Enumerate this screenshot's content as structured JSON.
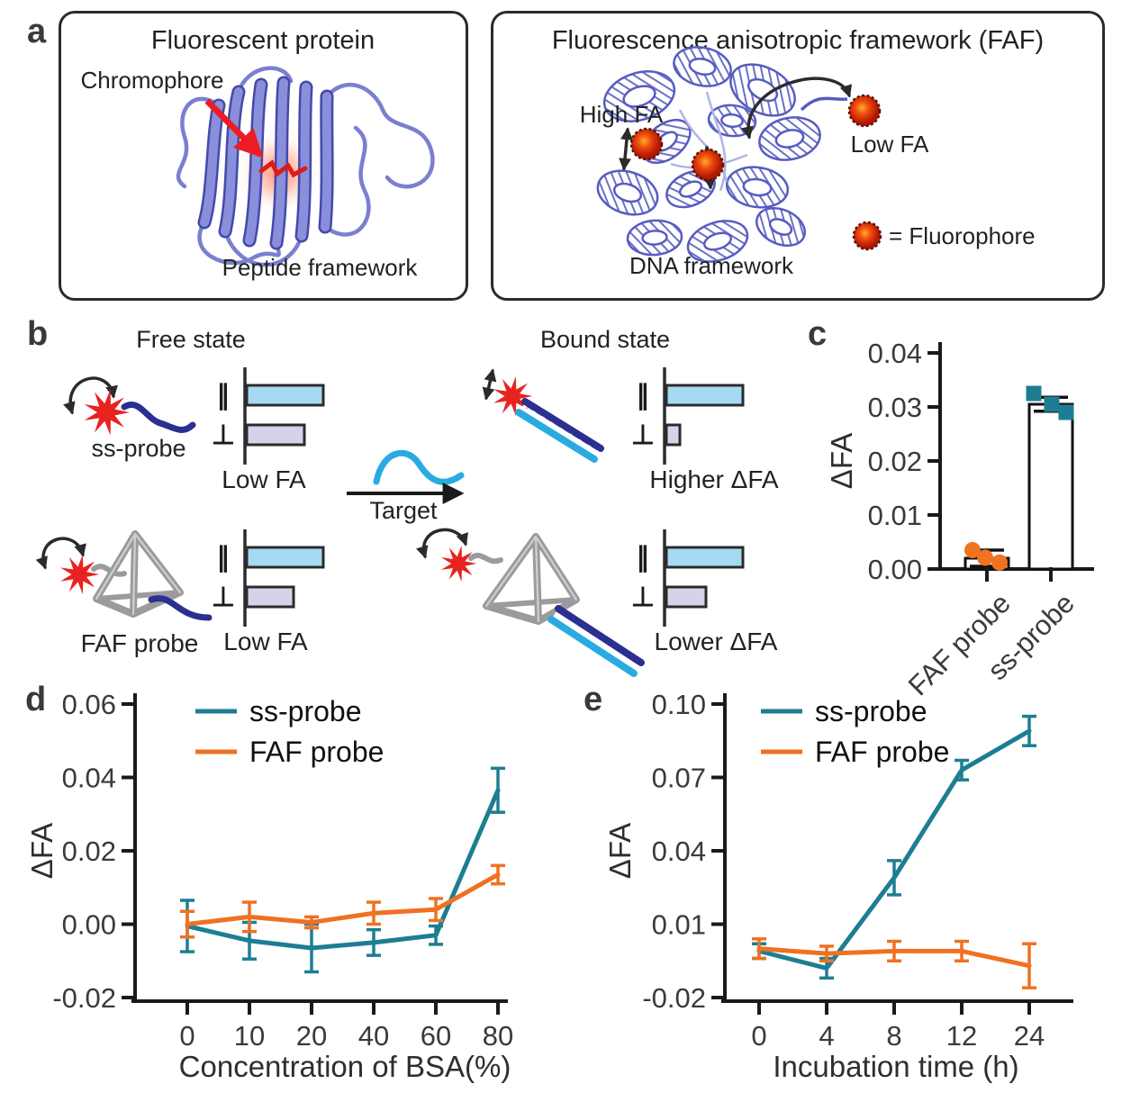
{
  "panel_labels": {
    "a": "a",
    "b": "b",
    "c": "c",
    "d": "d",
    "e": "e"
  },
  "panel_a": {
    "left": {
      "title": "Fluorescent protein",
      "chromophore_label": "Chromophore",
      "caption": "Peptide framework"
    },
    "right": {
      "title": "Fluorescence anisotropic framework (FAF)",
      "high_fa": "High FA",
      "low_fa": "Low FA",
      "fluorophore_legend": "= Fluorophore",
      "caption": "DNA framework"
    }
  },
  "panel_b": {
    "free_state_title": "Free state",
    "bound_state_title": "Bound state",
    "ss_probe_label": "ss-probe",
    "faf_probe_label": "FAF probe",
    "target_label": "Target",
    "parallel_symbol": "∥",
    "perpendicular_symbol": "⊥",
    "free_ss_caption": "Low FA",
    "free_faf_caption": "Low FA",
    "bound_ss_caption": "Higher ΔFA",
    "bound_faf_caption": "Lower ΔFA"
  },
  "chart_data": [
    {
      "id": "c",
      "type": "bar",
      "categories": [
        "FAF probe",
        "ss-probe"
      ],
      "values": [
        0.002,
        0.0305
      ],
      "errors": [
        0.0015,
        0.0013
      ],
      "points": [
        [
          0.0035,
          0.0021,
          0.0012
        ],
        [
          0.0325,
          0.0305,
          0.029
        ]
      ],
      "point_shapes": [
        "circle",
        "square"
      ],
      "point_colors": [
        "#f0741f",
        "#1d7e93"
      ],
      "ylabel": "ΔFA",
      "ylim": [
        0,
        0.04
      ],
      "yticks": [
        0,
        0.01,
        0.02,
        0.03,
        0.04
      ],
      "ytick_labels": [
        "0.00",
        "0.01",
        "0.02",
        "0.03",
        "0.04"
      ],
      "bar_fill": "#ffffff",
      "grid": false
    },
    {
      "id": "d",
      "type": "line",
      "categories": [
        "0",
        "10",
        "20",
        "40",
        "60",
        "80"
      ],
      "series": [
        {
          "name": "ss-probe",
          "color": "#1d7e93",
          "values": [
            -0.0005,
            -0.0045,
            -0.0065,
            -0.005,
            -0.003,
            0.0365
          ],
          "errors": [
            0.007,
            0.005,
            0.0065,
            0.0035,
            0.0025,
            0.006
          ]
        },
        {
          "name": "FAF probe",
          "color": "#ef7122",
          "values": [
            0.0,
            0.002,
            0.0005,
            0.003,
            0.004,
            0.0135
          ],
          "errors": [
            0.0035,
            0.004,
            0.0015,
            0.003,
            0.003,
            0.0025
          ]
        }
      ],
      "xlabel": "Concentration of BSA(%)",
      "ylabel": "ΔFA",
      "ylim": [
        -0.02,
        0.06
      ],
      "yticks": [
        -0.02,
        0,
        0.02,
        0.04,
        0.06
      ],
      "ytick_labels": [
        "-0.02",
        "0.00",
        "0.02",
        "0.04",
        "0.06"
      ],
      "legend_position": "top-left",
      "grid": false
    },
    {
      "id": "e",
      "type": "line",
      "categories": [
        "0",
        "4",
        "8",
        "12",
        "24"
      ],
      "series": [
        {
          "name": "ss-probe",
          "color": "#1d7e93",
          "values": [
            -0.001,
            -0.008,
            0.029,
            0.073,
            0.089
          ],
          "errors": [
            0.003,
            0.004,
            0.007,
            0.004,
            0.006
          ]
        },
        {
          "name": "FAF probe",
          "color": "#ef7122",
          "values": [
            0.0,
            -0.002,
            -0.001,
            -0.001,
            -0.007
          ],
          "errors": [
            0.004,
            0.003,
            0.004,
            0.004,
            0.009
          ]
        }
      ],
      "xlabel": "Incubation time (h)",
      "ylabel": "ΔFA",
      "ylim": [
        -0.02,
        0.1
      ],
      "yticks": [
        -0.02,
        0.01,
        0.04,
        0.07,
        0.1
      ],
      "ytick_labels": [
        "-0.02",
        "0.01",
        "0.04",
        "0.07",
        "0.10"
      ],
      "legend_position": "top-left",
      "grid": false
    }
  ],
  "colors": {
    "teal": "#1d7e93",
    "orange": "#ef7122",
    "light_blue_bar": "#a6d9f2",
    "lavender_bar": "#d6d2e9",
    "star_red": "#e8231f",
    "navy": "#2b2f8f",
    "cyan": "#29abe2",
    "tetra_gray": "#9b9b9d",
    "protein_blue": "#7d82d8",
    "dna_blue": "#565cc0",
    "axis": "#1a1a1a"
  }
}
